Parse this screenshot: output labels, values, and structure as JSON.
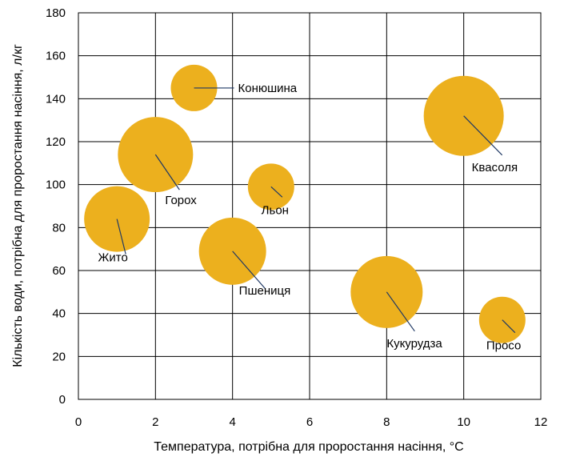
{
  "chart_data": {
    "type": "bubble",
    "title": "",
    "xlabel": "Температура, потрібна для проростання насіння, °C",
    "ylabel": "Кількість води, потрібна для проростання насіння, л/кг",
    "xlim": [
      0,
      12
    ],
    "ylim": [
      0,
      180
    ],
    "xticks": [
      0,
      2,
      4,
      6,
      8,
      10,
      12
    ],
    "yticks": [
      0,
      20,
      40,
      60,
      80,
      100,
      120,
      140,
      160,
      180
    ],
    "grid": true,
    "legend": "none",
    "colors": {
      "bubble": "#ECB01E",
      "grid": "#000000",
      "leader": "#1F3864"
    },
    "points": [
      {
        "label": "Конюшина",
        "x": 3,
        "y": 145,
        "size": 1.0
      },
      {
        "label": "Горох",
        "x": 2,
        "y": 114,
        "size": 2.6
      },
      {
        "label": "Жито",
        "x": 1,
        "y": 84,
        "size": 2.0
      },
      {
        "label": "Льон",
        "x": 5,
        "y": 99,
        "size": 1.0
      },
      {
        "label": "Пшениця",
        "x": 4,
        "y": 69,
        "size": 2.1
      },
      {
        "label": "Квасоля",
        "x": 10,
        "y": 132,
        "size": 3.0
      },
      {
        "label": "Кукурудза",
        "x": 8,
        "y": 50,
        "size": 2.4
      },
      {
        "label": "Просо",
        "x": 11,
        "y": 37,
        "size": 1.0
      }
    ]
  }
}
